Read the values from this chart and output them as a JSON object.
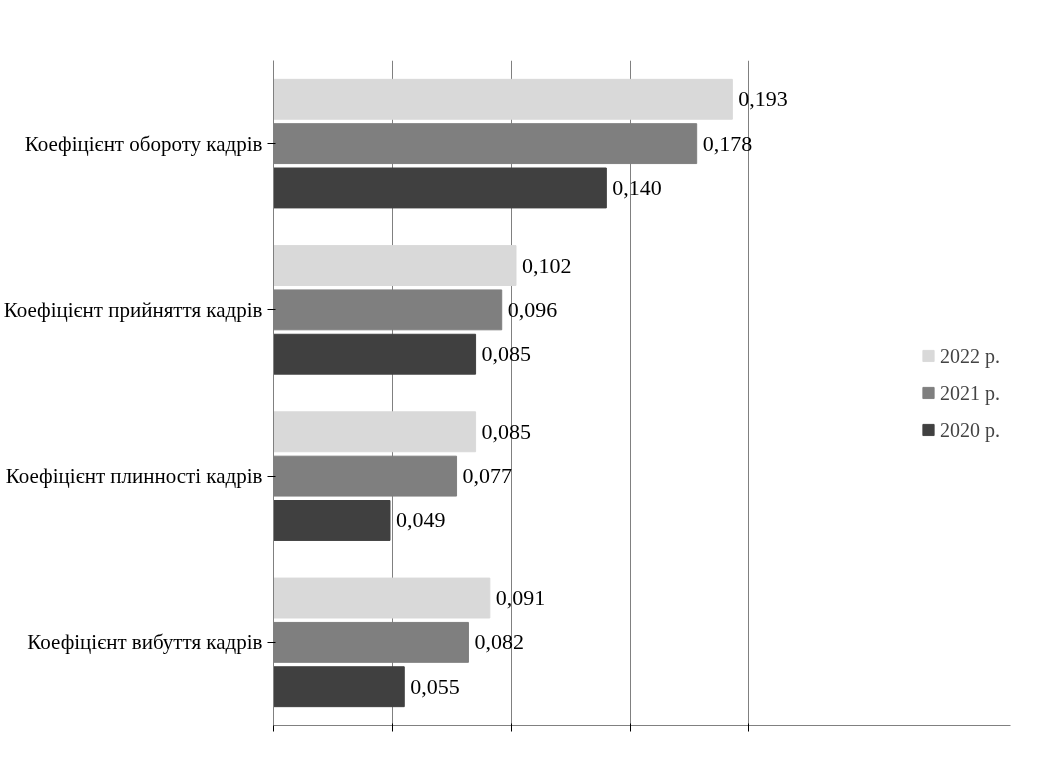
{
  "chart_data": {
    "type": "bar",
    "orientation": "horizontal",
    "categories": [
      "Коефіцієнт обороту кадрів",
      "Коефіцієнт прийняття кадрів",
      "Коефіцієнт плинності кадрів",
      "Коефіцієнт вибуття кадрів"
    ],
    "series": [
      {
        "name": "2022 р.",
        "color": "#d9d9d9",
        "values": [
          0.193,
          0.102,
          0.085,
          0.091
        ],
        "value_labels": [
          "0,193",
          "0,102",
          "0,085",
          "0,091"
        ]
      },
      {
        "name": "2021 р.",
        "color": "#7f7f7f",
        "values": [
          0.178,
          0.096,
          0.077,
          0.082
        ],
        "value_labels": [
          "0,178",
          "0,096",
          "0,077",
          "0,082"
        ]
      },
      {
        "name": "2020 р.",
        "color": "#404040",
        "values": [
          0.14,
          0.085,
          0.049,
          0.055
        ],
        "value_labels": [
          "0,140",
          "0,085",
          "0,049",
          "0,055"
        ]
      }
    ],
    "xlim": [
      0,
      0.2
    ],
    "xticks": [
      {
        "value": 0,
        "label": null
      },
      {
        "value": 0.05,
        "label": null
      },
      {
        "value": 0.1,
        "label": null
      },
      {
        "value": 0.15,
        "label": null
      },
      {
        "value": 0.2,
        "label": null
      }
    ],
    "grid": "x",
    "legend": "right",
    "tick_labels": "y"
  }
}
